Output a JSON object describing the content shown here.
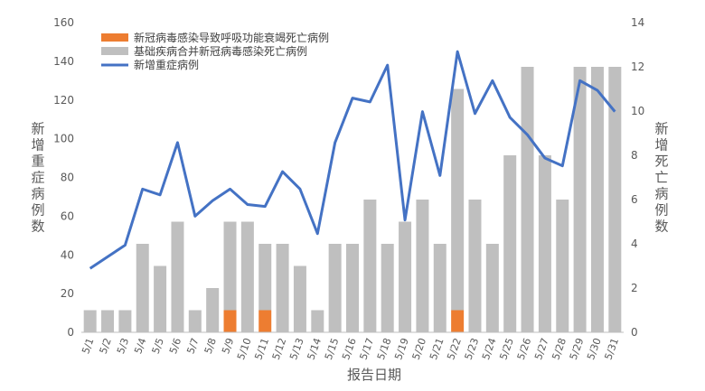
{
  "chart_data": {
    "type": "bar_line",
    "categories": [
      "5/1",
      "5/2",
      "5/3",
      "5/4",
      "5/5",
      "5/6",
      "5/7",
      "5/8",
      "5/9",
      "5/10",
      "5/11",
      "5/12",
      "5/13",
      "5/14",
      "5/15",
      "5/16",
      "5/17",
      "5/18",
      "5/19",
      "5/20",
      "5/21",
      "5/22",
      "5/23",
      "5/24",
      "5/25",
      "5/26",
      "5/27",
      "5/28",
      "5/29",
      "5/30",
      "5/31"
    ],
    "series": [
      {
        "name": "新冠病毒感染导致呼吸功能衰竭死亡病例",
        "color": "#ed7d31",
        "kind": "bar",
        "axis": "y2",
        "values": [
          null,
          null,
          null,
          null,
          null,
          null,
          null,
          null,
          1,
          null,
          1,
          null,
          null,
          null,
          null,
          null,
          null,
          null,
          null,
          null,
          null,
          1,
          null,
          null,
          null,
          null,
          null,
          null,
          null,
          null,
          null
        ]
      },
      {
        "name": "基础疾病合并新冠病毒感染死亡病例",
        "color": "#bfbfbf",
        "kind": "bar",
        "axis": "y2",
        "values": [
          1,
          1,
          1,
          4,
          3,
          5,
          1,
          2,
          4,
          5,
          3,
          4,
          3,
          1,
          4,
          4,
          6,
          4,
          5,
          6,
          4,
          10,
          6,
          4,
          8,
          12,
          8,
          6,
          12,
          12,
          12
        ]
      },
      {
        "name": "新增重症病例",
        "color": "#4472c4",
        "kind": "line",
        "values": [
          33,
          39,
          45,
          74,
          71,
          98,
          60,
          68,
          74,
          66,
          65,
          83,
          74,
          51,
          98,
          121,
          119,
          138,
          58,
          114,
          81,
          145,
          113,
          130,
          111,
          102,
          90,
          86,
          130,
          125,
          114
        ]
      }
    ],
    "ylim": [
      0,
      160
    ],
    "yticks": [
      0,
      20,
      40,
      60,
      80,
      100,
      120,
      140,
      160
    ],
    "y2lim": [
      0,
      14
    ],
    "y2ticks": [
      0,
      2,
      4,
      6,
      8,
      10,
      12,
      14
    ],
    "y_label": "新增重症病例数",
    "y2_label": "新增死亡病例数",
    "x_label": "报告日期"
  }
}
